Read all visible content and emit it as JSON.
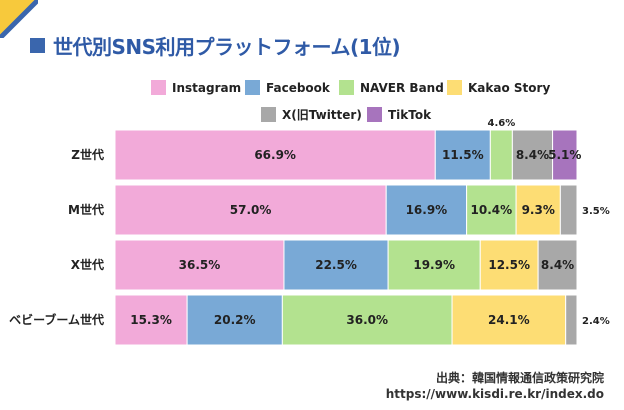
{
  "title": "世代別SNS利用プラットフォーム(1位)",
  "colors": {
    "accent": "#2f5aa6",
    "corner_yellow": "#f7c93c",
    "corner_blue": "#3a66ad"
  },
  "source": {
    "line1": "出典：韓国情報通信政策研究院",
    "line2": "https://www.kisdi.re.kr/index.do"
  },
  "chart_data": {
    "type": "bar",
    "orientation": "horizontal",
    "stacked": true,
    "unit": "%",
    "title": "世代別SNS利用プラットフォーム(1位)",
    "xlim": [
      0,
      100
    ],
    "grid": false,
    "legend_position": "top",
    "categories": [
      "Z世代",
      "M世代",
      "X世代",
      "ベビーブーム世代"
    ],
    "series": [
      {
        "name": "Instagram",
        "color": "#f2aad9",
        "values": [
          66.9,
          57.0,
          36.5,
          15.3
        ],
        "labels": [
          "66.9%",
          "57.0%",
          "36.5%",
          "15.3%"
        ]
      },
      {
        "name": "Facebook",
        "color": "#79a9d6",
        "values": [
          11.5,
          16.9,
          22.5,
          20.2
        ],
        "labels": [
          "11.5%",
          "16.9%",
          "22.5%",
          "20.2%"
        ]
      },
      {
        "name": "NAVER Band",
        "color": "#b3e28f",
        "values": [
          4.6,
          10.4,
          19.9,
          36.0
        ],
        "labels": [
          "4.6%",
          "10.4%",
          "19.9%",
          "36.0%"
        ]
      },
      {
        "name": "Kakao Story",
        "color": "#fddd74",
        "values": [
          0,
          9.3,
          12.5,
          24.1
        ],
        "labels": [
          "",
          "9.3%",
          "12.5%",
          "24.1%"
        ]
      },
      {
        "name": "X(旧Twitter)",
        "color": "#a8a8a8",
        "values": [
          8.4,
          3.5,
          8.4,
          2.4
        ],
        "labels": [
          "8.4%",
          "3.5%",
          "8.4%",
          "2.4%"
        ]
      },
      {
        "name": "TikTok",
        "color": "#a774bd",
        "values": [
          5.1,
          0,
          0,
          0
        ],
        "labels": [
          "5.1%",
          "",
          "",
          ""
        ]
      }
    ]
  }
}
